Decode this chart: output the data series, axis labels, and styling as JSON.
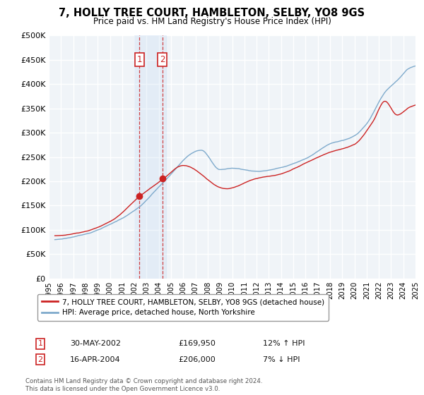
{
  "title": "7, HOLLY TREE COURT, HAMBLETON, SELBY, YO8 9GS",
  "subtitle": "Price paid vs. HM Land Registry's House Price Index (HPI)",
  "ylim": [
    0,
    500000
  ],
  "yticks": [
    0,
    50000,
    100000,
    150000,
    200000,
    250000,
    300000,
    350000,
    400000,
    450000,
    500000
  ],
  "ytick_labels": [
    "£0",
    "£50K",
    "£100K",
    "£150K",
    "£200K",
    "£250K",
    "£300K",
    "£350K",
    "£400K",
    "£450K",
    "£500K"
  ],
  "background_color": "#ffffff",
  "plot_bg_color": "#f0f4f8",
  "grid_color": "#ffffff",
  "hpi_color": "#7eaacc",
  "price_color": "#cc2222",
  "sale1_date": "30-MAY-2002",
  "sale1_price": 169950,
  "sale1_hpi_pct": "12% ↑ HPI",
  "sale2_date": "16-APR-2004",
  "sale2_price": 206000,
  "sale2_hpi_pct": "7% ↓ HPI",
  "legend_label1": "7, HOLLY TREE COURT, HAMBLETON, SELBY, YO8 9GS (detached house)",
  "legend_label2": "HPI: Average price, detached house, North Yorkshire",
  "footnote": "Contains HM Land Registry data © Crown copyright and database right 2024.\nThis data is licensed under the Open Government Licence v3.0.",
  "sale1_x": 2002.42,
  "sale2_x": 2004.29,
  "highlight_xmin": 2002.0,
  "highlight_xmax": 2004.58,
  "xmin": 1995.5,
  "xmax": 2025.0
}
